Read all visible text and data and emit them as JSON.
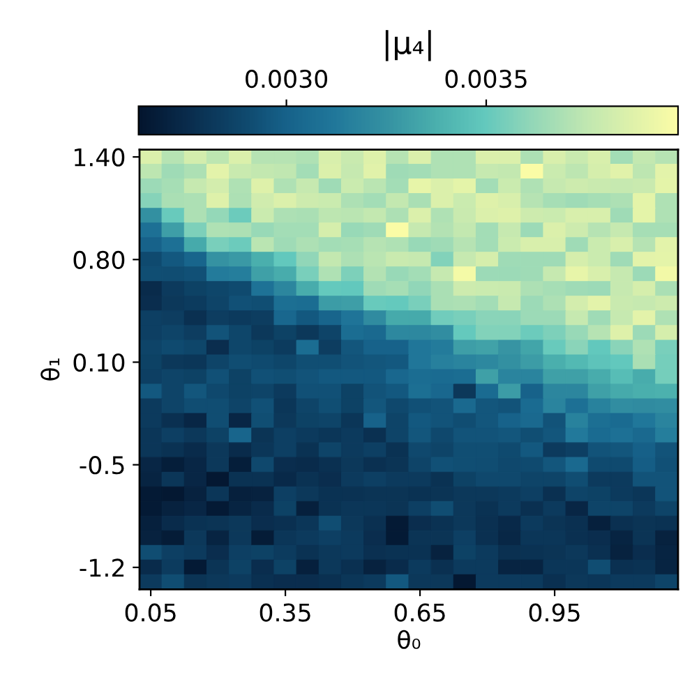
{
  "chart_data": {
    "type": "heatmap",
    "xlabel": "θ₀",
    "ylabel": "θ₁",
    "clabel": "|μ₄|",
    "categories": [
      "0.05",
      null,
      null,
      null,
      null,
      null,
      "0.35",
      null,
      null,
      null,
      null,
      null,
      "0.65",
      null,
      null,
      null,
      null,
      null,
      "0.95",
      null,
      null,
      null,
      null,
      null
    ],
    "y_categories": [
      "1.40",
      null,
      null,
      null,
      null,
      null,
      null,
      "0.80",
      null,
      null,
      null,
      null,
      null,
      null,
      "0.10",
      null,
      null,
      null,
      null,
      null,
      null,
      "-0.5",
      null,
      null,
      null,
      null,
      null,
      null,
      "-1.2",
      null
    ],
    "clim": [
      0.00263,
      0.00398
    ],
    "cticks": [
      {
        "value": 0.003,
        "label": "0.0030"
      },
      {
        "value": 0.0035,
        "label": "0.0035"
      }
    ],
    "cells": [
      [
        0.00385,
        0.00372,
        0.00382,
        0.00374,
        0.00385,
        0.00372,
        0.00372,
        0.0037,
        0.00384,
        0.00378,
        0.00386,
        0.00372,
        0.00385,
        0.0037,
        0.0037,
        0.00385,
        0.00385,
        0.00369,
        0.00384,
        0.00378,
        0.00384,
        0.00366,
        0.00376,
        0.00372
      ],
      [
        0.00374,
        0.00365,
        0.00369,
        0.00388,
        0.00378,
        0.00376,
        0.00375,
        0.00366,
        0.00385,
        0.00377,
        0.00387,
        0.00365,
        0.00366,
        0.0037,
        0.0037,
        0.00377,
        0.00376,
        0.00397,
        0.00379,
        0.00374,
        0.00383,
        0.00387,
        0.00374,
        0.00388
      ],
      [
        0.00364,
        0.00367,
        0.00377,
        0.00382,
        0.0037,
        0.00386,
        0.0037,
        0.00377,
        0.00365,
        0.00379,
        0.00373,
        0.00366,
        0.0039,
        0.00385,
        0.00389,
        0.00366,
        0.00379,
        0.0037,
        0.00377,
        0.0038,
        0.00378,
        0.00377,
        0.00378,
        0.00389
      ],
      [
        0.00358,
        0.00368,
        0.00369,
        0.00386,
        0.00369,
        0.00381,
        0.00385,
        0.0038,
        0.00379,
        0.00369,
        0.00366,
        0.00376,
        0.00368,
        0.00385,
        0.00379,
        0.00386,
        0.00384,
        0.00372,
        0.00367,
        0.00365,
        0.00367,
        0.00369,
        0.00389,
        0.0037
      ],
      [
        0.00324,
        0.00351,
        0.00369,
        0.00362,
        0.00352,
        0.00379,
        0.00369,
        0.00368,
        0.00374,
        0.00373,
        0.00376,
        0.00369,
        0.00385,
        0.0037,
        0.00378,
        0.00385,
        0.00386,
        0.0038,
        0.00379,
        0.00384,
        0.00384,
        0.00365,
        0.00389,
        0.0037
      ],
      [
        0.00308,
        0.0033,
        0.00356,
        0.0037,
        0.00369,
        0.00363,
        0.00366,
        0.00366,
        0.00383,
        0.00363,
        0.00365,
        0.00397,
        0.00377,
        0.00371,
        0.00376,
        0.00366,
        0.00377,
        0.00364,
        0.00385,
        0.0038,
        0.00372,
        0.00377,
        0.00367,
        0.00367
      ],
      [
        0.003,
        0.00308,
        0.00335,
        0.00355,
        0.00352,
        0.00373,
        0.00365,
        0.00369,
        0.00366,
        0.00367,
        0.00372,
        0.0037,
        0.00363,
        0.00365,
        0.00372,
        0.00366,
        0.00379,
        0.00384,
        0.00384,
        0.00365,
        0.00379,
        0.00384,
        0.00372,
        0.00388
      ],
      [
        0.0029,
        0.00296,
        0.00302,
        0.00325,
        0.00328,
        0.00337,
        0.00349,
        0.00361,
        0.00376,
        0.00369,
        0.00373,
        0.00378,
        0.00377,
        0.00357,
        0.00377,
        0.00383,
        0.00365,
        0.00365,
        0.00365,
        0.00383,
        0.00379,
        0.00365,
        0.00388,
        0.00389
      ],
      [
        0.00292,
        0.00291,
        0.00293,
        0.00314,
        0.00315,
        0.00331,
        0.00336,
        0.00355,
        0.0037,
        0.00356,
        0.00371,
        0.00363,
        0.00366,
        0.00377,
        0.00395,
        0.00364,
        0.00364,
        0.00365,
        0.00377,
        0.0039,
        0.00384,
        0.00377,
        0.00364,
        0.00394
      ],
      [
        0.00275,
        0.00282,
        0.00286,
        0.00288,
        0.0029,
        0.00309,
        0.00319,
        0.00336,
        0.0035,
        0.00349,
        0.00365,
        0.00367,
        0.00361,
        0.00368,
        0.0038,
        0.00379,
        0.00378,
        0.00369,
        0.00367,
        0.00365,
        0.00364,
        0.00377,
        0.00383,
        0.00368
      ],
      [
        0.00276,
        0.00281,
        0.00283,
        0.00287,
        0.00293,
        0.00292,
        0.00307,
        0.00306,
        0.00329,
        0.0033,
        0.00351,
        0.0035,
        0.00355,
        0.00368,
        0.00369,
        0.00366,
        0.00377,
        0.00364,
        0.00369,
        0.00382,
        0.00388,
        0.00378,
        0.00377,
        0.0038
      ],
      [
        0.00285,
        0.00284,
        0.00277,
        0.00284,
        0.00282,
        0.00284,
        0.00303,
        0.00296,
        0.00302,
        0.0031,
        0.00322,
        0.00335,
        0.00335,
        0.00353,
        0.00355,
        0.00359,
        0.00359,
        0.00364,
        0.00364,
        0.00377,
        0.00365,
        0.00377,
        0.00388,
        0.0037
      ],
      [
        0.00285,
        0.00287,
        0.00284,
        0.00294,
        0.00288,
        0.00281,
        0.00286,
        0.00281,
        0.00287,
        0.00306,
        0.00304,
        0.0032,
        0.0032,
        0.00323,
        0.0035,
        0.00357,
        0.00357,
        0.00352,
        0.00356,
        0.00363,
        0.00372,
        0.00386,
        0.00364,
        0.00383
      ],
      [
        0.00287,
        0.0029,
        0.00288,
        0.00276,
        0.00288,
        0.00286,
        0.00283,
        0.00306,
        0.00284,
        0.00295,
        0.003,
        0.003,
        0.00311,
        0.00314,
        0.0033,
        0.00332,
        0.00326,
        0.00333,
        0.00351,
        0.00359,
        0.00349,
        0.00359,
        0.0037,
        0.00355
      ],
      [
        0.00286,
        0.00281,
        0.0028,
        0.00287,
        0.00291,
        0.0029,
        0.00288,
        0.00292,
        0.00292,
        0.00294,
        0.00295,
        0.00296,
        0.00311,
        0.00316,
        0.00318,
        0.0032,
        0.00324,
        0.00329,
        0.00337,
        0.00342,
        0.00347,
        0.00349,
        0.00368,
        0.00354
      ],
      [
        0.00285,
        0.00287,
        0.00286,
        0.00293,
        0.00286,
        0.00293,
        0.00292,
        0.00294,
        0.00296,
        0.00296,
        0.00296,
        0.00303,
        0.00306,
        0.00305,
        0.00306,
        0.00331,
        0.00318,
        0.00318,
        0.00331,
        0.00331,
        0.00336,
        0.00344,
        0.00336,
        0.00354
      ],
      [
        0.00296,
        0.00287,
        0.00295,
        0.00289,
        0.00286,
        0.00287,
        0.00282,
        0.00293,
        0.00293,
        0.00286,
        0.00294,
        0.00296,
        0.00307,
        0.00303,
        0.00281,
        0.00305,
        0.00329,
        0.003,
        0.00319,
        0.00319,
        0.00331,
        0.00335,
        0.00337,
        0.00338
      ],
      [
        0.00282,
        0.00287,
        0.00291,
        0.00291,
        0.00287,
        0.00293,
        0.0028,
        0.00287,
        0.00292,
        0.00286,
        0.00295,
        0.00289,
        0.00293,
        0.00294,
        0.00304,
        0.00295,
        0.00294,
        0.00305,
        0.00318,
        0.00308,
        0.00317,
        0.00323,
        0.00322,
        0.00323
      ],
      [
        0.00282,
        0.00277,
        0.00272,
        0.00291,
        0.00272,
        0.00292,
        0.00281,
        0.00286,
        0.00287,
        0.0028,
        0.003,
        0.00287,
        0.00296,
        0.00294,
        0.00291,
        0.00295,
        0.003,
        0.00304,
        0.00294,
        0.00317,
        0.00307,
        0.00305,
        0.00312,
        0.00318
      ],
      [
        0.0028,
        0.00285,
        0.00281,
        0.00286,
        0.00302,
        0.00279,
        0.00285,
        0.00282,
        0.0028,
        0.00282,
        0.00277,
        0.00287,
        0.00295,
        0.00289,
        0.00294,
        0.00294,
        0.00295,
        0.00292,
        0.00295,
        0.00313,
        0.00305,
        0.00308,
        0.00304,
        0.00315
      ],
      [
        0.0028,
        0.00278,
        0.00275,
        0.00281,
        0.00275,
        0.0028,
        0.00285,
        0.00278,
        0.00287,
        0.00282,
        0.00285,
        0.00278,
        0.00289,
        0.00287,
        0.00292,
        0.00292,
        0.0029,
        0.00296,
        0.00282,
        0.00285,
        0.00294,
        0.00295,
        0.00299,
        0.00294
      ],
      [
        0.00272,
        0.00268,
        0.00272,
        0.00281,
        0.00268,
        0.00289,
        0.00276,
        0.00275,
        0.00277,
        0.00281,
        0.00277,
        0.00279,
        0.00287,
        0.00293,
        0.00292,
        0.00291,
        0.00289,
        0.0029,
        0.00295,
        0.00304,
        0.0029,
        0.0029,
        0.00298,
        0.00293
      ],
      [
        0.00271,
        0.0028,
        0.00272,
        0.00265,
        0.00278,
        0.00278,
        0.00274,
        0.00278,
        0.00276,
        0.00282,
        0.00285,
        0.00282,
        0.00282,
        0.00278,
        0.00286,
        0.00289,
        0.00289,
        0.00287,
        0.00287,
        0.00291,
        0.00282,
        0.00282,
        0.00294,
        0.00294
      ],
      [
        0.00266,
        0.00265,
        0.0027,
        0.0028,
        0.00269,
        0.0027,
        0.00285,
        0.00281,
        0.00278,
        0.00278,
        0.00279,
        0.00279,
        0.00278,
        0.00279,
        0.00281,
        0.00281,
        0.00282,
        0.00285,
        0.00277,
        0.00287,
        0.00286,
        0.00282,
        0.0028,
        0.00294
      ],
      [
        0.00266,
        0.0027,
        0.00272,
        0.00266,
        0.00271,
        0.00275,
        0.00286,
        0.00269,
        0.00278,
        0.0028,
        0.0028,
        0.00279,
        0.00285,
        0.00291,
        0.00281,
        0.00278,
        0.00282,
        0.00277,
        0.00282,
        0.00272,
        0.00287,
        0.00287,
        0.00282,
        0.00287
      ],
      [
        0.00269,
        0.00275,
        0.00278,
        0.00279,
        0.00281,
        0.00276,
        0.00277,
        0.0028,
        0.00291,
        0.00281,
        0.00277,
        0.00266,
        0.00276,
        0.00278,
        0.00281,
        0.00277,
        0.00274,
        0.00282,
        0.00279,
        0.00277,
        0.00269,
        0.00277,
        0.00279,
        0.00278
      ],
      [
        0.0027,
        0.00267,
        0.00281,
        0.00271,
        0.00281,
        0.00267,
        0.0028,
        0.00282,
        0.00285,
        0.00282,
        0.00276,
        0.00266,
        0.00279,
        0.00279,
        0.00285,
        0.00277,
        0.00273,
        0.0028,
        0.0028,
        0.00277,
        0.00276,
        0.00271,
        0.00279,
        0.0027
      ],
      [
        0.00291,
        0.00285,
        0.00282,
        0.00276,
        0.00285,
        0.00286,
        0.00283,
        0.00278,
        0.00281,
        0.00282,
        0.00277,
        0.00278,
        0.00278,
        0.0027,
        0.00286,
        0.00282,
        0.00277,
        0.00278,
        0.00279,
        0.00281,
        0.00277,
        0.0027,
        0.00276,
        0.00271
      ],
      [
        0.00275,
        0.00283,
        0.00266,
        0.00279,
        0.00286,
        0.00276,
        0.00286,
        0.00269,
        0.00281,
        0.00277,
        0.0027,
        0.00275,
        0.00282,
        0.00277,
        0.00282,
        0.00282,
        0.00271,
        0.00271,
        0.0028,
        0.0028,
        0.00291,
        0.00277,
        0.00278,
        0.00271
      ],
      [
        0.00282,
        0.00291,
        0.00279,
        0.00281,
        0.00282,
        0.00277,
        0.00276,
        0.00276,
        0.00277,
        0.0028,
        0.00282,
        0.00296,
        0.00281,
        0.00281,
        0.00265,
        0.00282,
        0.00282,
        0.00282,
        0.00277,
        0.00281,
        0.0028,
        0.00282,
        0.00282,
        0.00287
      ]
    ]
  }
}
